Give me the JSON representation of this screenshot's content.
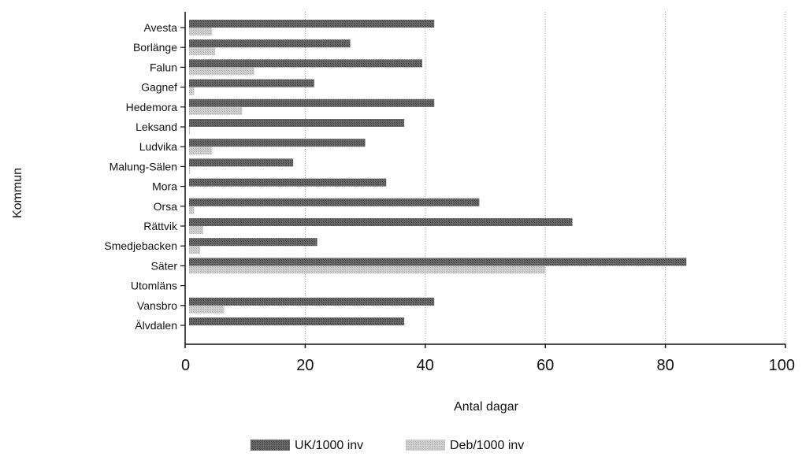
{
  "chart_data": {
    "type": "bar",
    "orientation": "horizontal",
    "title": "",
    "xlabel": "Antal dagar",
    "ylabel": "Kommun",
    "xlim": [
      0,
      100
    ],
    "xticks": [
      0,
      20,
      40,
      60,
      80,
      100
    ],
    "grid": "vertical dotted",
    "legend_position": "bottom",
    "categories": [
      "Avesta",
      "Borlänge",
      "Falun",
      "Gagnef",
      "Hedemora",
      "Leksand",
      "Ludvika",
      "Malung-Sälen",
      "Mora",
      "Orsa",
      "Rättvik",
      "Smedjebacken",
      "Säter",
      "Utomläns",
      "Vansbro",
      "Älvdalen"
    ],
    "series": [
      {
        "name": "UK/1000 inv",
        "color": "#5a5a5a",
        "values": [
          41.5,
          27.5,
          39.5,
          21.5,
          41.5,
          36.5,
          30,
          18,
          33.5,
          49,
          64.5,
          22,
          83.5,
          0,
          41.5,
          36.5
        ]
      },
      {
        "name": "Deb/1000 inv",
        "color": "#c4c4c4",
        "values": [
          4.5,
          5,
          11.5,
          1.5,
          9.5,
          0.5,
          4.5,
          0.5,
          0,
          1.5,
          3,
          2.5,
          60,
          0,
          6.5,
          0
        ]
      }
    ]
  }
}
